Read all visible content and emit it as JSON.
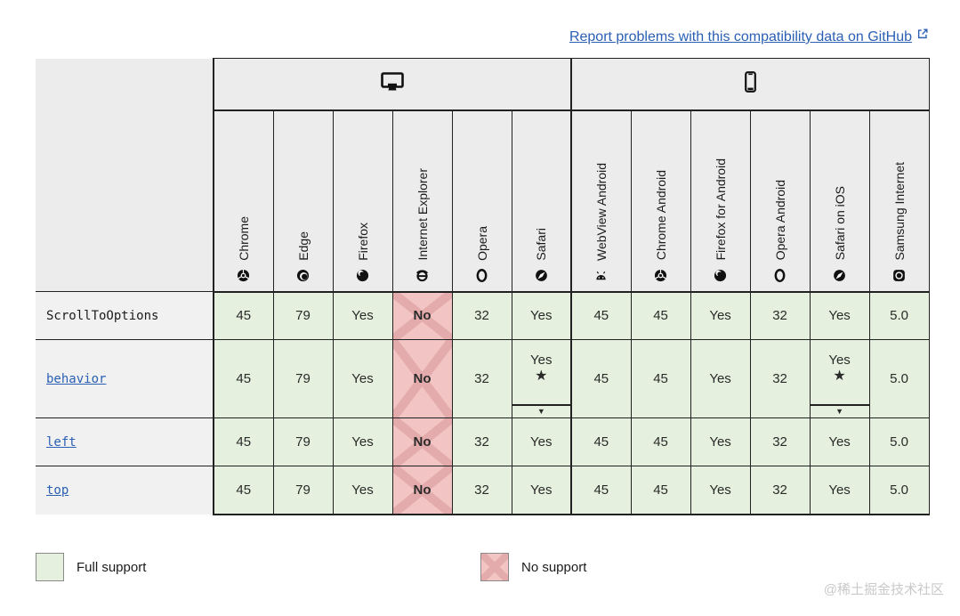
{
  "report_link": {
    "label": "Report problems with this compatibility data on GitHub"
  },
  "table": {
    "feature": "ScrollToOptions",
    "groups": [
      {
        "id": "desktop",
        "icon": "desktop-icon",
        "span": 6
      },
      {
        "id": "mobile",
        "icon": "mobile-icon",
        "span": 6
      }
    ],
    "browsers": [
      {
        "name": "Chrome",
        "icon": "chrome-icon",
        "group": "desktop"
      },
      {
        "name": "Edge",
        "icon": "edge-icon",
        "group": "desktop"
      },
      {
        "name": "Firefox",
        "icon": "firefox-icon",
        "group": "desktop"
      },
      {
        "name": "Internet Explorer",
        "icon": "internet-explorer-icon",
        "group": "desktop"
      },
      {
        "name": "Opera",
        "icon": "opera-icon",
        "group": "desktop"
      },
      {
        "name": "Safari",
        "icon": "safari-icon",
        "group": "desktop"
      },
      {
        "name": "WebView Android",
        "icon": "webview-android-icon",
        "group": "mobile"
      },
      {
        "name": "Chrome Android",
        "icon": "chrome-android-icon",
        "group": "mobile"
      },
      {
        "name": "Firefox for Android",
        "icon": "firefox-android-icon",
        "group": "mobile"
      },
      {
        "name": "Opera Android",
        "icon": "opera-android-icon",
        "group": "mobile"
      },
      {
        "name": "Safari on iOS",
        "icon": "safari-ios-icon",
        "group": "mobile"
      },
      {
        "name": "Samsung Internet",
        "icon": "samsung-internet-icon",
        "group": "mobile"
      }
    ],
    "rows": [
      {
        "label": "ScrollToOptions",
        "is_link": false,
        "cells": [
          {
            "text": "45",
            "support": "full"
          },
          {
            "text": "79",
            "support": "full"
          },
          {
            "text": "Yes",
            "support": "full"
          },
          {
            "text": "No",
            "support": "none"
          },
          {
            "text": "32",
            "support": "full"
          },
          {
            "text": "Yes",
            "support": "full"
          },
          {
            "text": "45",
            "support": "full"
          },
          {
            "text": "45",
            "support": "full"
          },
          {
            "text": "Yes",
            "support": "full"
          },
          {
            "text": "32",
            "support": "full"
          },
          {
            "text": "Yes",
            "support": "full"
          },
          {
            "text": "5.0",
            "support": "full"
          }
        ]
      },
      {
        "label": "behavior",
        "is_link": true,
        "cells": [
          {
            "text": "45",
            "support": "full"
          },
          {
            "text": "79",
            "support": "full"
          },
          {
            "text": "Yes",
            "support": "full"
          },
          {
            "text": "No",
            "support": "none"
          },
          {
            "text": "32",
            "support": "full"
          },
          {
            "text": "Yes",
            "support": "full",
            "footnote_star": "★",
            "note_toggle": "▼"
          },
          {
            "text": "45",
            "support": "full"
          },
          {
            "text": "45",
            "support": "full"
          },
          {
            "text": "Yes",
            "support": "full"
          },
          {
            "text": "32",
            "support": "full"
          },
          {
            "text": "Yes",
            "support": "full",
            "footnote_star": "★",
            "note_toggle": "▼"
          },
          {
            "text": "5.0",
            "support": "full"
          }
        ]
      },
      {
        "label": "left",
        "is_link": true,
        "cells": [
          {
            "text": "45",
            "support": "full"
          },
          {
            "text": "79",
            "support": "full"
          },
          {
            "text": "Yes",
            "support": "full"
          },
          {
            "text": "No",
            "support": "none"
          },
          {
            "text": "32",
            "support": "full"
          },
          {
            "text": "Yes",
            "support": "full"
          },
          {
            "text": "45",
            "support": "full"
          },
          {
            "text": "45",
            "support": "full"
          },
          {
            "text": "Yes",
            "support": "full"
          },
          {
            "text": "32",
            "support": "full"
          },
          {
            "text": "Yes",
            "support": "full"
          },
          {
            "text": "5.0",
            "support": "full"
          }
        ]
      },
      {
        "label": "top",
        "is_link": true,
        "cells": [
          {
            "text": "45",
            "support": "full"
          },
          {
            "text": "79",
            "support": "full"
          },
          {
            "text": "Yes",
            "support": "full"
          },
          {
            "text": "No",
            "support": "none"
          },
          {
            "text": "32",
            "support": "full"
          },
          {
            "text": "Yes",
            "support": "full"
          },
          {
            "text": "45",
            "support": "full"
          },
          {
            "text": "45",
            "support": "full"
          },
          {
            "text": "Yes",
            "support": "full"
          },
          {
            "text": "32",
            "support": "full"
          },
          {
            "text": "Yes",
            "support": "full"
          },
          {
            "text": "5.0",
            "support": "full"
          }
        ]
      }
    ]
  },
  "legend": [
    {
      "label": "Full support",
      "type": "full"
    },
    {
      "label": "No support",
      "type": "none"
    }
  ],
  "colors": {
    "full_support_bg": "#e5f1de",
    "no_support_bg": "#f3c4c4",
    "no_support_cross": "#e3abab",
    "header_bg": "#ececec",
    "label_bg": "#f1f1f1",
    "link_blue": "#2a5fb4",
    "border_dark": "#212121"
  },
  "watermark": "@稀土掘金技术社区"
}
